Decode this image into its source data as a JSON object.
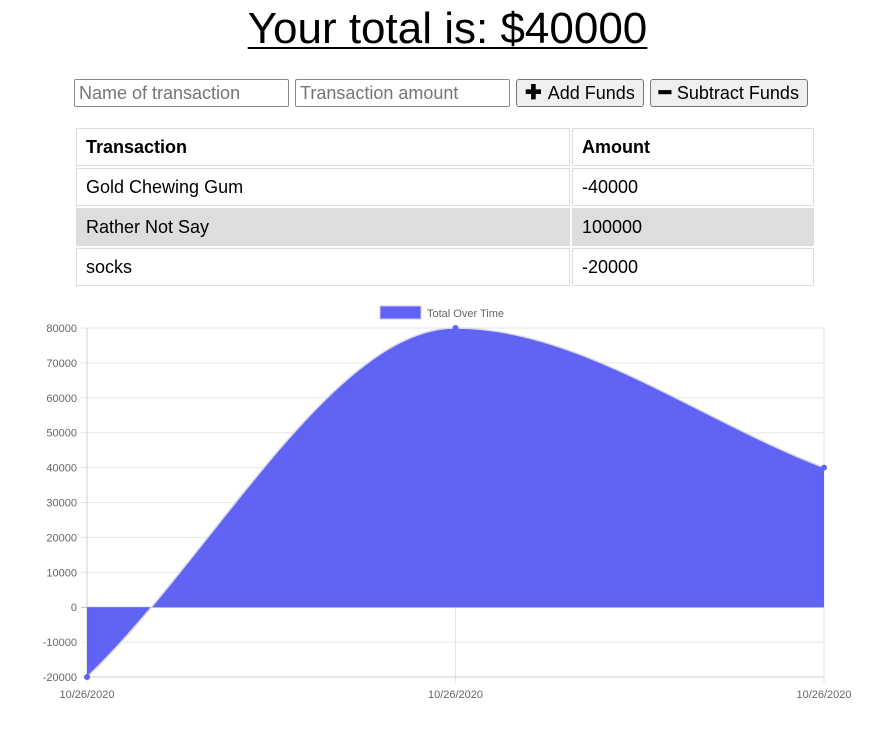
{
  "header": {
    "title": "Your total is: $40000"
  },
  "form": {
    "name_placeholder": "Name of transaction",
    "amount_placeholder": "Transaction amount",
    "add_label": "Add Funds",
    "subtract_label": "Subtract Funds"
  },
  "table": {
    "headers": [
      "Transaction",
      "Amount"
    ],
    "rows": [
      {
        "name": "Gold Chewing Gum",
        "amount": "-40000"
      },
      {
        "name": "Rather Not Say",
        "amount": "100000"
      },
      {
        "name": "socks",
        "amount": "-20000"
      }
    ]
  },
  "chart_data": {
    "type": "area",
    "x": [
      "10/26/2020",
      "10/26/2020",
      "10/26/2020"
    ],
    "series": [
      {
        "name": "Total Over Time",
        "values": [
          -20000,
          80000,
          40000
        ],
        "color": "#6163f5"
      }
    ],
    "ylim": [
      -20000,
      80000
    ],
    "yticks": [
      80000,
      70000,
      60000,
      50000,
      40000,
      30000,
      20000,
      10000,
      0,
      -10000,
      -20000
    ],
    "grid": true,
    "legend": "top-center",
    "title": "",
    "xlabel": "",
    "ylabel": ""
  }
}
